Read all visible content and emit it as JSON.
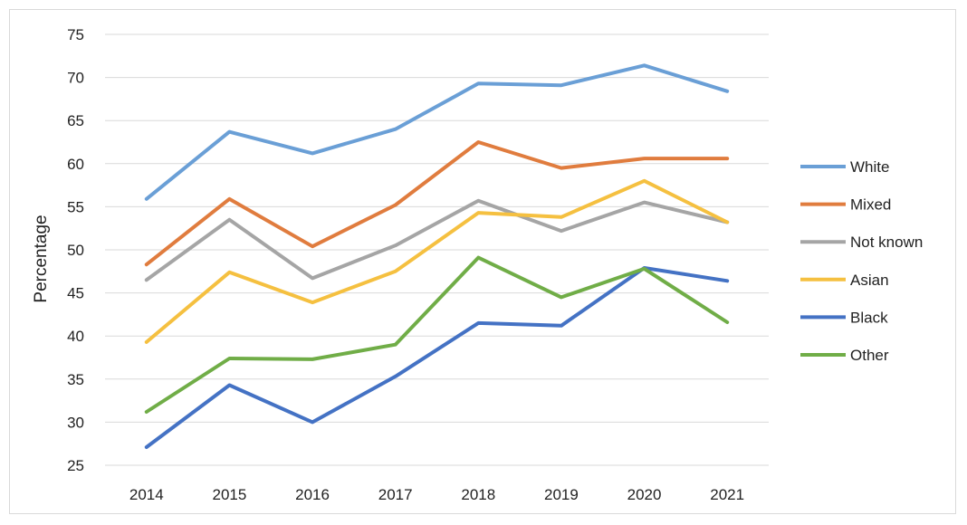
{
  "chart_data": {
    "type": "line",
    "title": "",
    "xlabel": "",
    "ylabel": "Percentage",
    "ylim": [
      25,
      75
    ],
    "yticks": [
      25,
      30,
      35,
      40,
      45,
      50,
      55,
      60,
      65,
      70,
      75
    ],
    "grid": "horizontal",
    "legend_position": "right",
    "categories": [
      "2014",
      "2015",
      "2016",
      "2017",
      "2018",
      "2019",
      "2020",
      "2021"
    ],
    "series": [
      {
        "name": "White",
        "color": "#6a9fd6",
        "values": [
          55.9,
          63.7,
          61.2,
          64.0,
          69.3,
          69.1,
          71.4,
          68.4
        ]
      },
      {
        "name": "Mixed",
        "color": "#e07c3e",
        "values": [
          48.3,
          55.9,
          50.4,
          55.2,
          62.5,
          59.5,
          60.6,
          60.6
        ]
      },
      {
        "name": "Not known",
        "color": "#a5a5a5",
        "values": [
          46.5,
          53.5,
          46.7,
          50.5,
          55.7,
          52.2,
          55.5,
          53.2
        ]
      },
      {
        "name": "Asian",
        "color": "#f5c040",
        "values": [
          39.3,
          47.4,
          43.9,
          47.5,
          54.3,
          53.8,
          58.0,
          53.2
        ]
      },
      {
        "name": "Black",
        "color": "#4472c4",
        "values": [
          27.1,
          34.3,
          30.0,
          35.3,
          41.5,
          41.2,
          47.9,
          46.4
        ]
      },
      {
        "name": "Other",
        "color": "#70ad47",
        "values": [
          31.2,
          37.4,
          37.3,
          39.0,
          49.1,
          44.5,
          47.8,
          41.6
        ]
      }
    ]
  }
}
